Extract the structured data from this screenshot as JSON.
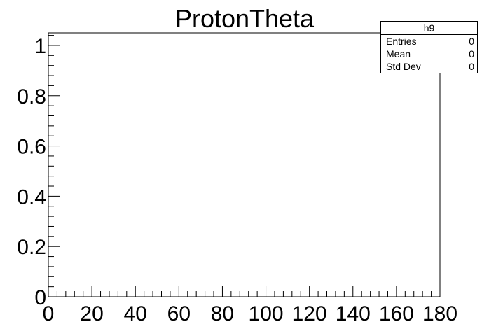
{
  "chart_data": {
    "type": "bar",
    "title": "ProtonTheta",
    "xlabel": "",
    "ylabel": "",
    "xlim": [
      0,
      180
    ],
    "ylim": [
      0,
      1.05
    ],
    "x_ticks": [
      0,
      20,
      40,
      60,
      80,
      100,
      120,
      140,
      160,
      180
    ],
    "y_ticks": [
      0,
      0.2,
      0.4,
      0.6,
      0.8,
      1
    ],
    "x_tick_labels": [
      "0",
      "20",
      "40",
      "60",
      "80",
      "100",
      "120",
      "140",
      "160",
      "180"
    ],
    "y_tick_labels": [
      "0",
      "0.2",
      "0.4",
      "0.6",
      "0.8",
      "1"
    ],
    "values": [],
    "grid": false,
    "stats_box": {
      "name": "h9",
      "rows": [
        {
          "label": "Entries",
          "value": "0"
        },
        {
          "label": "Mean",
          "value": "0"
        },
        {
          "label": "Std Dev",
          "value": "0"
        }
      ],
      "placement": "top-right"
    }
  }
}
